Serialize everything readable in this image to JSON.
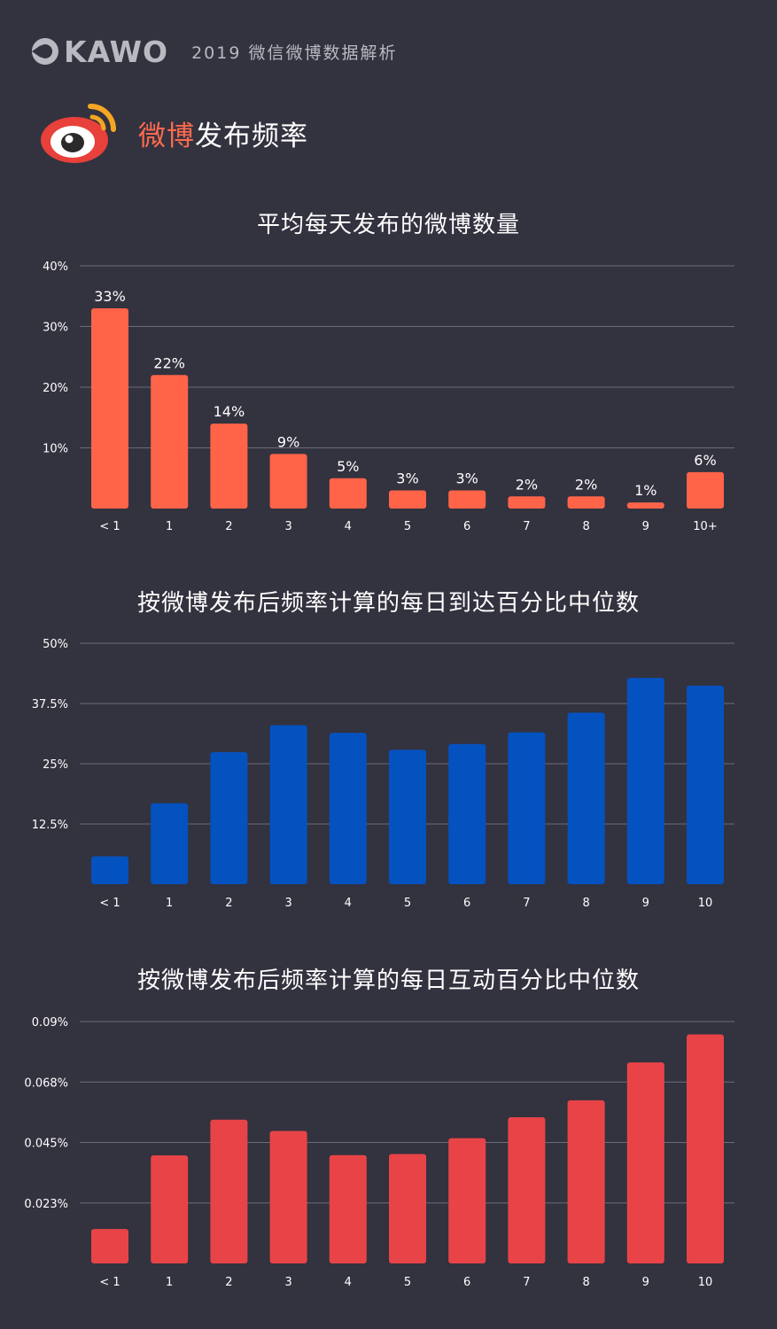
{
  "header": {
    "brand": "KAWO",
    "report_title": "2019 微信微博数据解析"
  },
  "section": {
    "title_highlight": "微博",
    "title_rest": "发布频率",
    "logo_icon": "weibo-eye-icon"
  },
  "colors": {
    "background": "#33323f",
    "chart1": "#ff6449",
    "chart2": "#0452c0",
    "chart3": "#e84447"
  },
  "chart_data": [
    {
      "type": "bar",
      "title": "平均每天发布的微博数量",
      "categories": [
        "< 1",
        "1",
        "2",
        "3",
        "4",
        "5",
        "6",
        "7",
        "8",
        "9",
        "10+"
      ],
      "values": [
        33,
        22,
        14,
        9,
        5,
        3,
        3,
        2,
        2,
        1,
        6
      ],
      "data_labels": [
        "33%",
        "22%",
        "14%",
        "9%",
        "5%",
        "3%",
        "3%",
        "2%",
        "2%",
        "1%",
        "6%"
      ],
      "ylim": [
        0,
        40
      ],
      "yticks": [
        10,
        20,
        30,
        40
      ],
      "ytick_labels": [
        "10%",
        "20%",
        "30%",
        "40%"
      ],
      "grid": true
    },
    {
      "type": "bar",
      "title": "按微博发布后频率计算的每日到达百分比中位数",
      "categories": [
        "< 1",
        "1",
        "2",
        "3",
        "4",
        "5",
        "6",
        "7",
        "8",
        "9",
        "10"
      ],
      "values": [
        5.8,
        16.8,
        27.4,
        33.0,
        31.4,
        27.9,
        29.1,
        31.5,
        35.6,
        42.8,
        41.2
      ],
      "ylim": [
        0,
        50
      ],
      "yticks": [
        12.5,
        25,
        37.5,
        50
      ],
      "ytick_labels": [
        "12.5%",
        "25%",
        "37.5%",
        "50%"
      ],
      "grid": true
    },
    {
      "type": "bar",
      "title": "按微博发布后频率计算的每日互动百分比中位数",
      "categories": [
        "< 1",
        "1",
        "2",
        "3",
        "4",
        "5",
        "6",
        "7",
        "8",
        "9",
        "10"
      ],
      "values": [
        0.0128,
        0.0402,
        0.0535,
        0.0493,
        0.0403,
        0.0407,
        0.0466,
        0.0544,
        0.0607,
        0.0748,
        0.0852
      ],
      "ylim": [
        0,
        0.09
      ],
      "yticks": [
        0.0225,
        0.045,
        0.0675,
        0.09
      ],
      "ytick_labels": [
        "0.023%",
        "0.045%",
        "0.068%",
        "0.09%"
      ],
      "grid": true
    }
  ]
}
